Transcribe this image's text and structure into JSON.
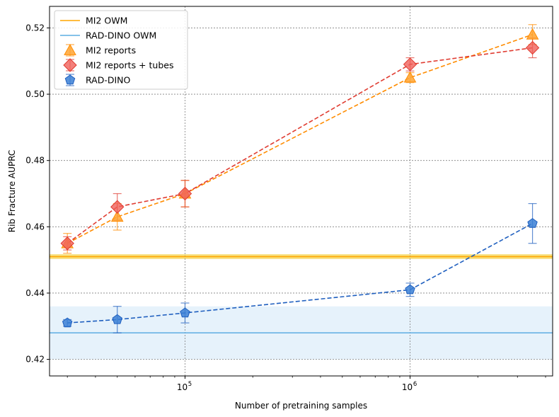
{
  "chart_data": {
    "type": "line",
    "xscale": "log",
    "xlabel": "Number of pretraining samples",
    "ylabel": "Rib Fracture AUPRC",
    "xlim": [
      25000,
      4300000
    ],
    "ylim": [
      0.415,
      0.5265
    ],
    "yticks": [
      0.42,
      0.44,
      0.46,
      0.48,
      0.5,
      0.52
    ],
    "ytick_labels": [
      "0.42",
      "0.44",
      "0.46",
      "0.48",
      "0.50",
      "0.52"
    ],
    "xticks": [
      {
        "value": 100000,
        "base": "10",
        "exp": "5"
      },
      {
        "value": 1000000,
        "base": "10",
        "exp": "6"
      }
    ],
    "grid": true,
    "legend_position": "top-left",
    "hlines": [
      {
        "name": "MI2 OWM",
        "value": 0.451,
        "band": [
          0.4503,
          0.4517
        ],
        "color": "#ffa500",
        "band_color": "#f4d03f"
      },
      {
        "name": "RAD-DINO OWM",
        "value": 0.428,
        "band": [
          0.42,
          0.436
        ],
        "color": "#5dade2",
        "band_color": "#d6eaf8"
      }
    ],
    "series": [
      {
        "name": "MI2 reports",
        "marker": "triangle",
        "color": "#ff8c00",
        "fill": "#ffa532",
        "x": [
          30000,
          50000,
          100000,
          1000000,
          3500000
        ],
        "values": [
          0.455,
          0.463,
          0.47,
          0.505,
          0.518
        ],
        "errors": [
          0.003,
          0.004,
          0.004,
          0.0015,
          0.003
        ]
      },
      {
        "name": "MI2 reports + tubes",
        "marker": "diamond",
        "color": "#e03c31",
        "fill": "#f0605a",
        "x": [
          30000,
          50000,
          100000,
          1000000,
          3500000
        ],
        "values": [
          0.455,
          0.466,
          0.47,
          0.509,
          0.514
        ],
        "errors": [
          0.002,
          0.004,
          0.004,
          0.002,
          0.003
        ]
      },
      {
        "name": "RAD-DINO",
        "marker": "pentagon",
        "color": "#1f5fbf",
        "fill": "#3a7fd5",
        "x": [
          30000,
          50000,
          100000,
          1000000,
          3500000
        ],
        "values": [
          0.431,
          0.432,
          0.434,
          0.441,
          0.461
        ],
        "errors": [
          0.001,
          0.004,
          0.003,
          0.002,
          0.006
        ]
      }
    ]
  }
}
